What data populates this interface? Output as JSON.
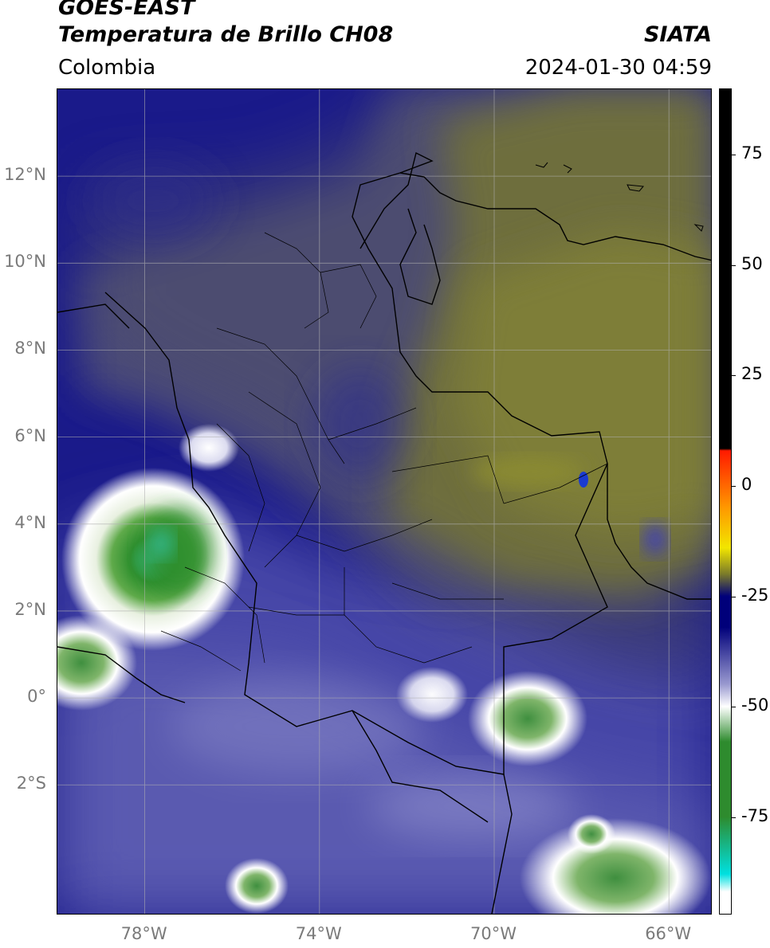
{
  "header": {
    "satellite": "GOES-EAST",
    "product": "Temperatura de Brillo CH08",
    "organization": "SIATA",
    "region": "Colombia",
    "datetime": "2024-01-30 04:59"
  },
  "map": {
    "lon_range": [
      -80,
      -65
    ],
    "lat_range": [
      -5,
      14
    ],
    "lat_ticks": [
      {
        "value": 12,
        "label": "12°N"
      },
      {
        "value": 10,
        "label": "10°N"
      },
      {
        "value": 8,
        "label": "8°N"
      },
      {
        "value": 6,
        "label": "6°N"
      },
      {
        "value": 4,
        "label": "4°N"
      },
      {
        "value": 2,
        "label": "2°N"
      },
      {
        "value": 0,
        "label": "0°"
      },
      {
        "value": -2,
        "label": "2°S"
      }
    ],
    "lon_ticks": [
      {
        "value": -78,
        "label": "78°W"
      },
      {
        "value": -74,
        "label": "74°W"
      },
      {
        "value": -70,
        "label": "70°W"
      },
      {
        "value": -66,
        "label": "66°W"
      }
    ],
    "gridlines": true
  },
  "colorbar": {
    "range": [
      -97,
      90
    ],
    "ticks": [
      {
        "value": 75,
        "label": "75"
      },
      {
        "value": 50,
        "label": "50"
      },
      {
        "value": 25,
        "label": "25"
      },
      {
        "value": 0,
        "label": "0"
      },
      {
        "value": -25,
        "label": "-25"
      },
      {
        "value": -50,
        "label": "-50"
      },
      {
        "value": -75,
        "label": "-75"
      }
    ],
    "colors": {
      "black": "#000000",
      "red": "#ff1a00",
      "orange": "#ff9900",
      "yellow": "#f2e600",
      "olive": "#7a7a2a",
      "dark_blue": "#00007a",
      "light_blue": "#9a9ad0",
      "white": "#ffffff",
      "green": "#2e8b2e",
      "cyan": "#00e0e0"
    }
  }
}
